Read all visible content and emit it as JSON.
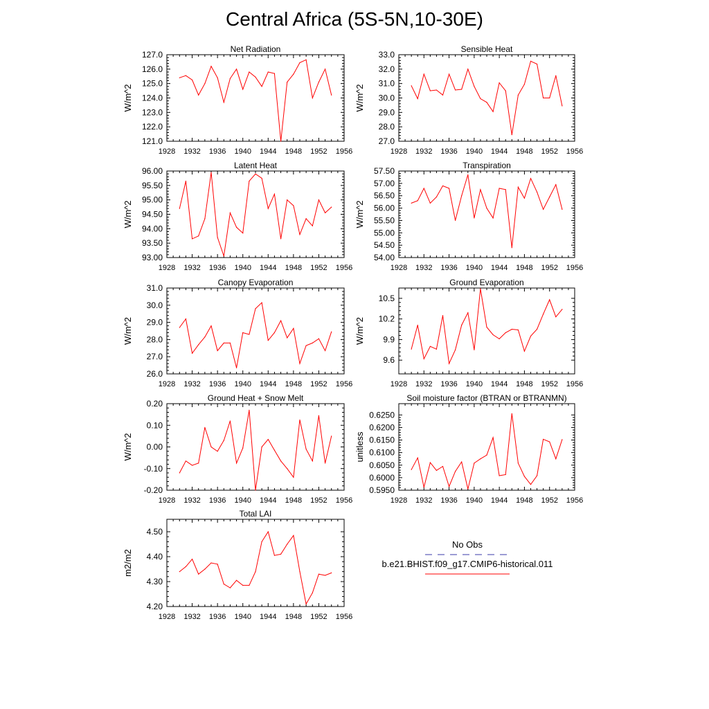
{
  "title": "Central Africa (5S-5N,10-30E)",
  "legend": {
    "obs_label": "No Obs",
    "obs_color": "#3a3aa8",
    "case_label": "b.e21.BHIST.f09_g17.CMIP6-historical.011",
    "case_color": "#ff0000"
  },
  "chart_data": [
    {
      "type": "line",
      "title": "Net Radiation",
      "ylabel": "W/m^2",
      "xlim": [
        1928,
        1956
      ],
      "ylim": [
        121,
        127
      ],
      "xticks": [
        "1928",
        "1932",
        "1936",
        "1940",
        "1944",
        "1948",
        "1952",
        "1956"
      ],
      "yticks": [
        "121.0",
        "122.0",
        "123.0",
        "124.0",
        "125.0",
        "126.0",
        "127.0"
      ],
      "x": [
        1930,
        1931,
        1932,
        1933,
        1934,
        1935,
        1936,
        1937,
        1938,
        1939,
        1940,
        1941,
        1942,
        1943,
        1944,
        1945,
        1946,
        1947,
        1948,
        1949,
        1950,
        1951,
        1952,
        1953,
        1954
      ],
      "values": [
        125.4,
        125.55,
        125.25,
        124.2,
        125.0,
        126.2,
        125.4,
        123.7,
        125.35,
        126.0,
        124.6,
        125.8,
        125.45,
        124.8,
        125.8,
        125.7,
        121.0,
        125.1,
        125.65,
        126.45,
        126.65,
        124.0,
        125.1,
        126.0,
        124.2
      ],
      "color": "#ff0000"
    },
    {
      "type": "line",
      "title": "Sensible Heat",
      "ylabel": "W/m^2",
      "xlim": [
        1928,
        1956
      ],
      "ylim": [
        27,
        33
      ],
      "xticks": [
        "1928",
        "1932",
        "1936",
        "1940",
        "1944",
        "1948",
        "1952",
        "1956"
      ],
      "yticks": [
        "27.0",
        "28.0",
        "29.0",
        "30.0",
        "31.0",
        "32.0",
        "33.0"
      ],
      "x": [
        1930,
        1931,
        1932,
        1933,
        1934,
        1935,
        1936,
        1937,
        1938,
        1939,
        1940,
        1941,
        1942,
        1943,
        1944,
        1945,
        1946,
        1947,
        1948,
        1949,
        1950,
        1951,
        1952,
        1953,
        1954
      ],
      "values": [
        30.85,
        29.95,
        31.65,
        30.5,
        30.55,
        30.2,
        31.65,
        30.55,
        30.6,
        32.0,
        30.8,
        29.95,
        29.7,
        29.05,
        31.05,
        30.5,
        27.45,
        30.2,
        30.95,
        32.55,
        32.35,
        30.0,
        30.0,
        31.55,
        29.45
      ],
      "color": "#ff0000"
    },
    {
      "type": "line",
      "title": "Latent Heat",
      "ylabel": "W/m^2",
      "xlim": [
        1928,
        1956
      ],
      "ylim": [
        93,
        96
      ],
      "xticks": [
        "1928",
        "1932",
        "1936",
        "1940",
        "1944",
        "1948",
        "1952",
        "1956"
      ],
      "yticks": [
        "93.00",
        "93.50",
        "94.00",
        "94.50",
        "95.00",
        "95.50",
        "96.00"
      ],
      "x": [
        1930,
        1931,
        1932,
        1933,
        1934,
        1935,
        1936,
        1937,
        1938,
        1939,
        1940,
        1941,
        1942,
        1943,
        1944,
        1945,
        1946,
        1947,
        1948,
        1949,
        1950,
        1951,
        1952,
        1953,
        1954
      ],
      "values": [
        94.7,
        95.65,
        93.65,
        93.75,
        94.35,
        95.95,
        93.7,
        93.05,
        94.55,
        94.05,
        93.85,
        95.65,
        95.9,
        95.75,
        94.7,
        95.2,
        93.65,
        95.0,
        94.8,
        93.8,
        94.35,
        94.1,
        95.0,
        94.55,
        94.75
      ],
      "color": "#ff0000"
    },
    {
      "type": "line",
      "title": "Transpiration",
      "ylabel": "W/m^2",
      "xlim": [
        1928,
        1956
      ],
      "ylim": [
        54,
        57.5
      ],
      "xticks": [
        "1928",
        "1932",
        "1936",
        "1940",
        "1944",
        "1948",
        "1952",
        "1956"
      ],
      "yticks": [
        "54.00",
        "54.50",
        "55.00",
        "55.50",
        "56.00",
        "56.50",
        "57.00",
        "57.50"
      ],
      "x": [
        1930,
        1931,
        1932,
        1933,
        1934,
        1935,
        1936,
        1937,
        1938,
        1939,
        1940,
        1941,
        1942,
        1943,
        1944,
        1945,
        1946,
        1947,
        1948,
        1949,
        1950,
        1951,
        1952,
        1953,
        1954
      ],
      "values": [
        56.2,
        56.3,
        56.8,
        56.2,
        56.45,
        56.9,
        56.8,
        55.5,
        56.5,
        57.35,
        55.6,
        56.75,
        56.0,
        55.6,
        56.8,
        56.75,
        54.4,
        56.85,
        56.4,
        57.2,
        56.65,
        55.95,
        56.45,
        56.95,
        55.95
      ],
      "color": "#ff0000"
    },
    {
      "type": "line",
      "title": "Canopy Evaporation",
      "ylabel": "W/m^2",
      "xlim": [
        1928,
        1956
      ],
      "ylim": [
        26,
        31
      ],
      "xticks": [
        "1928",
        "1932",
        "1936",
        "1940",
        "1944",
        "1948",
        "1952",
        "1956"
      ],
      "yticks": [
        "26.0",
        "27.0",
        "28.0",
        "29.0",
        "30.0",
        "31.0"
      ],
      "x": [
        1930,
        1931,
        1932,
        1933,
        1934,
        1935,
        1936,
        1937,
        1938,
        1939,
        1940,
        1941,
        1942,
        1943,
        1944,
        1945,
        1946,
        1947,
        1948,
        1949,
        1950,
        1951,
        1952,
        1953,
        1954
      ],
      "values": [
        28.7,
        29.2,
        27.2,
        27.7,
        28.15,
        28.8,
        27.35,
        27.8,
        27.8,
        26.35,
        28.4,
        28.3,
        29.8,
        30.15,
        27.95,
        28.4,
        29.1,
        28.1,
        28.65,
        26.6,
        27.65,
        27.8,
        28.05,
        27.35,
        28.45
      ],
      "color": "#ff0000"
    },
    {
      "type": "line",
      "title": "Ground Evaporation",
      "ylabel": "W/m^2",
      "xlim": [
        1928,
        1956
      ],
      "ylim": [
        9.4,
        10.65
      ],
      "xticks": [
        "1928",
        "1932",
        "1936",
        "1940",
        "1944",
        "1948",
        "1952",
        "1956"
      ],
      "yticks": [
        "9.6",
        "9.9",
        "10.2",
        "10.5"
      ],
      "ytick_values": [
        9.6,
        9.9,
        10.2,
        10.5
      ],
      "x": [
        1930,
        1931,
        1932,
        1933,
        1934,
        1935,
        1936,
        1937,
        1938,
        1939,
        1940,
        1941,
        1942,
        1943,
        1944,
        1945,
        1946,
        1947,
        1948,
        1949,
        1950,
        1951,
        1952,
        1953,
        1954
      ],
      "values": [
        9.76,
        10.11,
        9.62,
        9.8,
        9.76,
        10.25,
        9.55,
        9.75,
        10.11,
        10.29,
        9.75,
        10.64,
        10.08,
        9.97,
        9.91,
        10.0,
        10.05,
        10.04,
        9.73,
        9.95,
        10.05,
        10.27,
        10.48,
        10.23,
        10.34
      ],
      "color": "#ff0000"
    },
    {
      "type": "line",
      "title": "Ground Heat + Snow Melt",
      "ylabel": "W/m^2",
      "xlim": [
        1928,
        1956
      ],
      "ylim": [
        -0.2,
        0.2
      ],
      "xticks": [
        "1928",
        "1932",
        "1936",
        "1940",
        "1944",
        "1948",
        "1952",
        "1956"
      ],
      "yticks": [
        "-0.20",
        "-0.10",
        "0.00",
        "0.10",
        "0.20"
      ],
      "x": [
        1930,
        1931,
        1932,
        1933,
        1934,
        1935,
        1936,
        1937,
        1938,
        1939,
        1940,
        1941,
        1942,
        1943,
        1944,
        1945,
        1946,
        1947,
        1948,
        1949,
        1950,
        1951,
        1952,
        1953,
        1954
      ],
      "values": [
        -0.12,
        -0.065,
        -0.085,
        -0.075,
        0.09,
        0.0,
        -0.02,
        0.03,
        0.12,
        -0.075,
        -0.005,
        0.17,
        -0.2,
        0.0,
        0.035,
        -0.015,
        -0.065,
        -0.1,
        -0.14,
        0.125,
        -0.01,
        -0.065,
        0.145,
        -0.075,
        0.05
      ],
      "color": "#ff0000"
    },
    {
      "type": "line",
      "title": "Soil moisture factor (BTRAN or BTRANMN)",
      "ylabel": "unitless",
      "xlim": [
        1928,
        1956
      ],
      "ylim": [
        0.595,
        0.6295
      ],
      "xticks": [
        "1928",
        "1932",
        "1936",
        "1940",
        "1944",
        "1948",
        "1952",
        "1956"
      ],
      "yticks": [
        "0.5950",
        "0.6000",
        "0.6050",
        "0.6100",
        "0.6150",
        "0.6200",
        "0.6250"
      ],
      "ytick_values": [
        0.595,
        0.6,
        0.605,
        0.61,
        0.615,
        0.62,
        0.625
      ],
      "x": [
        1930,
        1931,
        1932,
        1933,
        1934,
        1935,
        1936,
        1937,
        1938,
        1939,
        1940,
        1941,
        1942,
        1943,
        1944,
        1945,
        1946,
        1947,
        1948,
        1949,
        1950,
        1951,
        1952,
        1953,
        1954
      ],
      "values": [
        0.6032,
        0.6079,
        0.5962,
        0.606,
        0.6029,
        0.6045,
        0.5965,
        0.6025,
        0.6063,
        0.5955,
        0.6058,
        0.6075,
        0.609,
        0.616,
        0.6008,
        0.6012,
        0.6255,
        0.6058,
        0.6005,
        0.5973,
        0.6008,
        0.6153,
        0.6143,
        0.6075,
        0.6152
      ],
      "color": "#ff0000"
    },
    {
      "type": "line",
      "title": "Total LAI",
      "ylabel": "m2/m2",
      "xlim": [
        1928,
        1956
      ],
      "ylim": [
        4.2,
        4.55
      ],
      "xticks": [
        "1928",
        "1932",
        "1936",
        "1940",
        "1944",
        "1948",
        "1952",
        "1956"
      ],
      "yticks": [
        "4.20",
        "4.30",
        "4.40",
        "4.50"
      ],
      "ytick_values": [
        4.2,
        4.3,
        4.4,
        4.5
      ],
      "x": [
        1930,
        1931,
        1932,
        1933,
        1934,
        1935,
        1936,
        1937,
        1938,
        1939,
        1940,
        1941,
        1942,
        1943,
        1944,
        1945,
        1946,
        1947,
        1948,
        1949,
        1950,
        1951,
        1952,
        1953,
        1954
      ],
      "values": [
        4.34,
        4.36,
        4.39,
        4.33,
        4.35,
        4.375,
        4.37,
        4.29,
        4.275,
        4.305,
        4.285,
        4.285,
        4.34,
        4.46,
        4.5,
        4.405,
        4.41,
        4.45,
        4.485,
        4.34,
        4.21,
        4.255,
        4.33,
        4.325,
        4.335
      ],
      "color": "#ff0000"
    }
  ]
}
